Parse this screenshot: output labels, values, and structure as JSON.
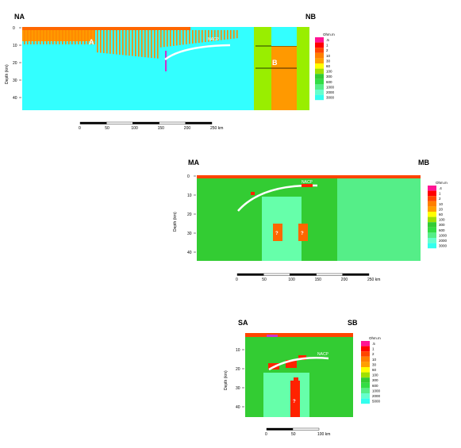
{
  "colors": {
    "scale": [
      "#ff1493",
      "#ff0000",
      "#ff4500",
      "#ff7f00",
      "#ff9f00",
      "#ffff00",
      "#a0e000",
      "#33cc33",
      "#33dd44",
      "#55ee88",
      "#66ffcc",
      "#33ffee"
    ],
    "cyan": "#33ffff",
    "green": "#33cc33",
    "lightgreen": "#66ffaa",
    "orange": "#ff9900",
    "red": "#ff2200",
    "yellowgreen": "#99ee00"
  },
  "panels": [
    {
      "id": "north",
      "left_label": "NA",
      "right_label": "NB",
      "ylabel": "Depth (km)",
      "yticks": [
        "0",
        "10",
        "20",
        "30",
        "40"
      ],
      "xticks": [
        "0",
        "50",
        "100",
        "150",
        "200",
        "250 km"
      ],
      "annot_curve": "NACP",
      "annot_a": "A",
      "annot_b": "B",
      "legend_title": "Ohm.m",
      "legend_values": [
        ".5",
        "1",
        "2",
        "10",
        "30",
        "60",
        "100",
        "300",
        "600",
        "1000",
        "2000",
        "3000"
      ]
    },
    {
      "id": "middle",
      "left_label": "MA",
      "right_label": "MB",
      "ylabel": "Depth (km)",
      "yticks": [
        "0",
        "10",
        "20",
        "30",
        "40"
      ],
      "xticks": [
        "0",
        "50",
        "100",
        "150",
        "200",
        "250 km"
      ],
      "annot_curve": "NACP",
      "annot_q1": "?",
      "annot_q2": "?",
      "legend_title": "Ohm.m",
      "legend_values": [
        ".4",
        "1",
        "2",
        "10",
        "20",
        "60",
        "100",
        "300",
        "600",
        "1000",
        "2000",
        "3000"
      ]
    },
    {
      "id": "south",
      "left_label": "SA",
      "right_label": "SB",
      "ylabel": "Depth (km)",
      "yticks": [
        "10",
        "20",
        "30",
        "40"
      ],
      "xticks": [
        "0",
        "50",
        "100 km"
      ],
      "annot_curve": "NACP",
      "annot_q": "?",
      "legend_title": "Ohm.m",
      "legend_values": [
        ".5",
        "1",
        "2",
        "10",
        "30",
        "60",
        "100",
        "300",
        "600",
        "1000",
        "2000",
        "5000"
      ]
    }
  ]
}
